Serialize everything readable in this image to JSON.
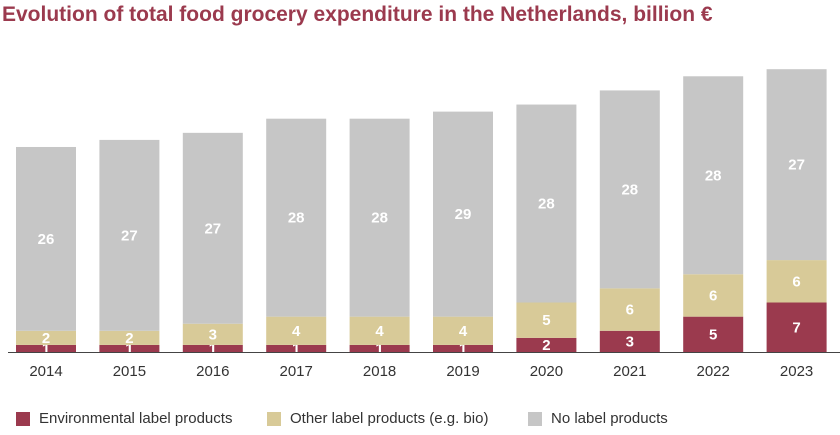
{
  "chart_data": {
    "type": "bar",
    "stacked": true,
    "title": "Evolution of total food grocery expenditure in the Netherlands, billion €",
    "xlabel": "",
    "ylabel": "",
    "categories": [
      "2014",
      "2015",
      "2016",
      "2017",
      "2018",
      "2019",
      "2020",
      "2021",
      "2022",
      "2023"
    ],
    "series": [
      {
        "name": "Environmental label products",
        "color": "#9b3a4e",
        "values": [
          1,
          1,
          1,
          1,
          1,
          1,
          2,
          3,
          5,
          7
        ]
      },
      {
        "name": "Other label products (e.g. bio)",
        "color": "#d8ca98",
        "values": [
          2,
          2,
          3,
          4,
          4,
          4,
          5,
          6,
          6,
          6
        ]
      },
      {
        "name": "No label products",
        "color": "#c6c6c6",
        "values": [
          26,
          27,
          27,
          28,
          28,
          29,
          28,
          28,
          28,
          27
        ]
      }
    ],
    "ylim": [
      0,
      40
    ],
    "grid": false,
    "legend_position": "bottom"
  }
}
